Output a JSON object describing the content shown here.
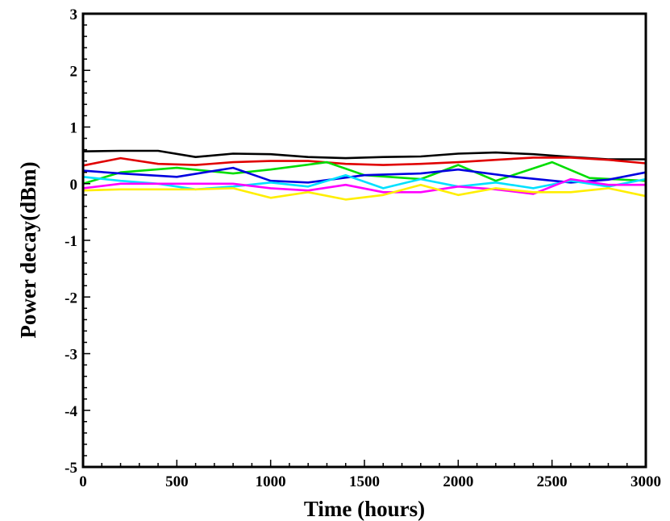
{
  "chart_data": {
    "type": "line",
    "title": "",
    "xlabel": "Time (hours)",
    "ylabel": "Power decay(dBm)",
    "xlim": [
      0,
      3000
    ],
    "ylim": [
      -5,
      3
    ],
    "xticks": [
      0,
      500,
      1000,
      1500,
      2000,
      2500,
      3000
    ],
    "xtick_labels": [
      "0",
      "500",
      "1000",
      "1500",
      "2000",
      "2500",
      "3000"
    ],
    "yticks": [
      3,
      2,
      1,
      0,
      -1,
      -2,
      -3,
      -4,
      -5
    ],
    "ytick_labels": [
      "3",
      "2",
      "1",
      "0",
      "-1",
      "-2",
      "-3",
      "-4",
      "-5"
    ],
    "grid": false,
    "legend": "none",
    "series": [
      {
        "color": "#000000",
        "x": [
          0,
          200,
          400,
          600,
          800,
          1000,
          1200,
          1400,
          1600,
          1800,
          2000,
          2200,
          2400,
          2600,
          2800,
          3000
        ],
        "y": [
          0.57,
          0.58,
          0.58,
          0.47,
          0.53,
          0.52,
          0.47,
          0.45,
          0.47,
          0.48,
          0.53,
          0.55,
          0.52,
          0.47,
          0.43,
          0.43
        ]
      },
      {
        "color": "#e00000",
        "x": [
          0,
          200,
          400,
          600,
          800,
          1000,
          1200,
          1400,
          1600,
          1800,
          2000,
          2200,
          2400,
          2600,
          2800,
          3000
        ],
        "y": [
          0.32,
          0.45,
          0.35,
          0.33,
          0.38,
          0.4,
          0.4,
          0.35,
          0.33,
          0.35,
          0.38,
          0.42,
          0.46,
          0.46,
          0.42,
          0.36
        ]
      },
      {
        "color": "#00dd00",
        "x": [
          0,
          200,
          500,
          800,
          1000,
          1300,
          1500,
          1800,
          2000,
          2200,
          2500,
          2700,
          3000
        ],
        "y": [
          0.0,
          0.2,
          0.28,
          0.18,
          0.25,
          0.38,
          0.15,
          0.08,
          0.33,
          0.05,
          0.38,
          0.1,
          0.05
        ]
      },
      {
        "color": "#0000e0",
        "x": [
          0,
          200,
          500,
          800,
          1000,
          1200,
          1500,
          1800,
          2000,
          2300,
          2600,
          2800,
          3000
        ],
        "y": [
          0.23,
          0.18,
          0.12,
          0.28,
          0.05,
          0.02,
          0.15,
          0.18,
          0.25,
          0.12,
          0.02,
          0.07,
          0.2
        ]
      },
      {
        "color": "#00e0ff",
        "x": [
          0,
          200,
          400,
          600,
          800,
          1000,
          1200,
          1400,
          1600,
          1800,
          2000,
          2200,
          2400,
          2600,
          2800,
          3000
        ],
        "y": [
          0.12,
          0.05,
          0.0,
          -0.1,
          -0.05,
          0.02,
          -0.05,
          0.15,
          -0.08,
          0.08,
          -0.05,
          0.02,
          -0.08,
          0.05,
          -0.05,
          0.08
        ]
      },
      {
        "color": "#ff00ff",
        "x": [
          0,
          200,
          400,
          600,
          800,
          1000,
          1200,
          1400,
          1600,
          1800,
          2000,
          2200,
          2400,
          2600,
          2800,
          3000
        ],
        "y": [
          -0.08,
          0.0,
          0.0,
          0.0,
          0.0,
          -0.08,
          -0.12,
          -0.02,
          -0.15,
          -0.15,
          -0.05,
          -0.1,
          -0.18,
          0.08,
          -0.02,
          -0.02
        ]
      },
      {
        "color": "#ffee00",
        "x": [
          0,
          200,
          400,
          600,
          800,
          1000,
          1200,
          1400,
          1600,
          1800,
          2000,
          2200,
          2400,
          2600,
          2800,
          3000
        ],
        "y": [
          -0.12,
          -0.1,
          -0.1,
          -0.1,
          -0.08,
          -0.25,
          -0.15,
          -0.28,
          -0.2,
          -0.02,
          -0.2,
          -0.08,
          -0.15,
          -0.15,
          -0.08,
          -0.22
        ]
      }
    ]
  }
}
